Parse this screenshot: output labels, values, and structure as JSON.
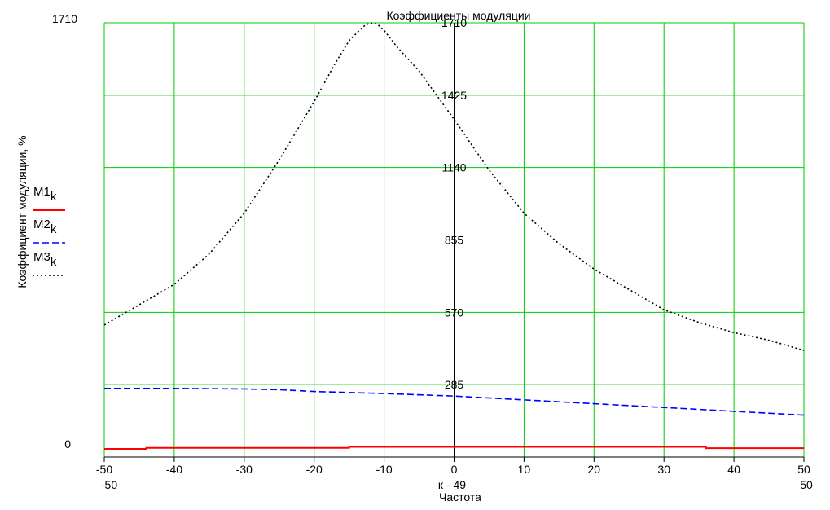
{
  "chart_data": {
    "type": "line",
    "title": "Коэффициенты модуляции",
    "xlabel_top": "к - 49",
    "xlabel": "Частота",
    "ylabel": "Коэффициент модуляции, %",
    "xlim": [
      -50,
      50
    ],
    "ylim": [
      0,
      1710
    ],
    "xticks": [
      -50,
      -40,
      -30,
      -20,
      -10,
      0,
      10,
      20,
      30,
      40,
      50
    ],
    "xtick_labels": [
      "-50",
      "-40",
      "-30",
      "-20",
      "-10",
      "0",
      "10",
      "20",
      "30",
      "40",
      "50"
    ],
    "yticks": [
      285,
      570,
      855,
      1140,
      1425,
      1710
    ],
    "ytick_labels": [
      "285",
      "570",
      "855",
      "1140",
      "1425",
      "1710"
    ],
    "yaxis_left_labels": {
      "top": "1710",
      "bottom": "0"
    },
    "xaxis_range_labels": {
      "left": "-50",
      "right": "50"
    },
    "grid": true,
    "grid_color": "#00cc00",
    "legend_position": "left",
    "series": [
      {
        "name": "M1k",
        "legend_main": "M1",
        "legend_sub": "k",
        "color": "#ff0000",
        "style": "solid",
        "x": [
          -50,
          -44,
          -44,
          -15,
          -15,
          36,
          36,
          50
        ],
        "y": [
          32,
          32,
          36,
          36,
          40,
          40,
          35,
          35
        ]
      },
      {
        "name": "M2k",
        "legend_main": "M2",
        "legend_sub": "k",
        "color": "#0000ff",
        "style": "dashed",
        "x": [
          -50,
          -40,
          -30,
          -25,
          -20,
          -10,
          0,
          10,
          20,
          30,
          40,
          50
        ],
        "y": [
          270,
          270,
          268,
          265,
          258,
          250,
          240,
          225,
          210,
          195,
          180,
          165
        ]
      },
      {
        "name": "M3k",
        "legend_main": "M3",
        "legend_sub": "k",
        "color": "#000000",
        "style": "dotted",
        "x": [
          -50,
          -45,
          -40,
          -35,
          -30,
          -25,
          -20,
          -17,
          -15,
          -13,
          -12,
          -11,
          -10,
          -8,
          -5,
          0,
          5,
          10,
          15,
          20,
          25,
          30,
          35,
          40,
          45,
          50
        ],
        "y": [
          520,
          600,
          680,
          800,
          960,
          1170,
          1400,
          1550,
          1640,
          1695,
          1710,
          1705,
          1680,
          1610,
          1520,
          1330,
          1130,
          960,
          840,
          740,
          660,
          580,
          530,
          490,
          460,
          420
        ]
      }
    ]
  }
}
